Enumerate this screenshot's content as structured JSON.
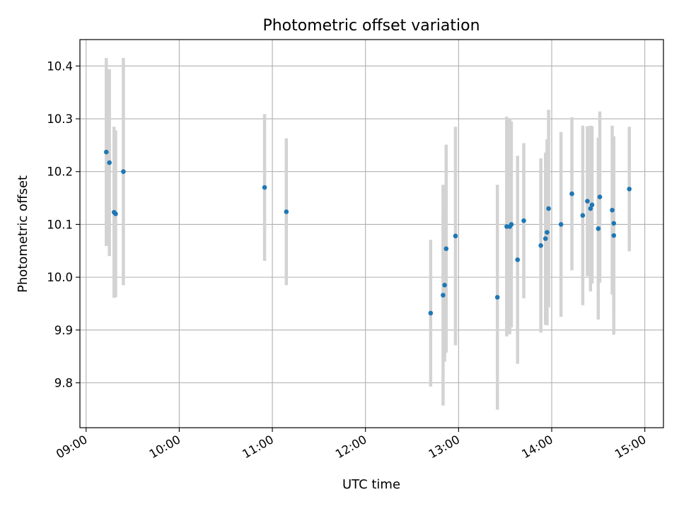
{
  "chart_data": {
    "type": "scatter",
    "title": "Photometric offset variation",
    "xlabel": "UTC time",
    "ylabel": "Photometric offset",
    "x_ticks": [
      "09:00",
      "10:00",
      "11:00",
      "12:00",
      "13:00",
      "14:00",
      "15:00"
    ],
    "y_ticks": [
      "9.8",
      "9.9",
      "10.0",
      "10.1",
      "10.2",
      "10.3",
      "10.4"
    ],
    "xlim": [
      "08:56",
      "15:12"
    ],
    "ylim": [
      9.715,
      10.45
    ],
    "grid": true,
    "errorbars": true,
    "colors": {
      "points": "#1f77b4",
      "errorbars": "#d3d3d3",
      "grid": "#b0b0b0"
    },
    "points": [
      {
        "x": "09:13",
        "y": 10.237,
        "err": 0.178
      },
      {
        "x": "09:15",
        "y": 10.217,
        "err": 0.177
      },
      {
        "x": "09:18",
        "y": 10.123,
        "err": 0.162
      },
      {
        "x": "09:19",
        "y": 10.12,
        "err": 0.158
      },
      {
        "x": "09:24",
        "y": 10.2,
        "err": 0.215
      },
      {
        "x": "10:55",
        "y": 10.17,
        "err": 0.139
      },
      {
        "x": "11:09",
        "y": 10.124,
        "err": 0.139
      },
      {
        "x": "12:42",
        "y": 9.932,
        "err": 0.139
      },
      {
        "x": "12:50",
        "y": 9.966,
        "err": 0.209
      },
      {
        "x": "12:51",
        "y": 9.985,
        "err": 0.145
      },
      {
        "x": "12:52",
        "y": 10.054,
        "err": 0.197
      },
      {
        "x": "12:58",
        "y": 10.078,
        "err": 0.207
      },
      {
        "x": "13:25",
        "y": 9.962,
        "err": 0.213
      },
      {
        "x": "13:31",
        "y": 10.096,
        "err": 0.208
      },
      {
        "x": "13:33",
        "y": 10.096,
        "err": 0.204
      },
      {
        "x": "13:34",
        "y": 10.1,
        "err": 0.195
      },
      {
        "x": "13:38",
        "y": 10.033,
        "err": 0.197
      },
      {
        "x": "13:42",
        "y": 10.107,
        "err": 0.147
      },
      {
        "x": "13:53",
        "y": 10.06,
        "err": 0.165
      },
      {
        "x": "13:56",
        "y": 10.073,
        "err": 0.163
      },
      {
        "x": "13:57",
        "y": 10.085,
        "err": 0.176
      },
      {
        "x": "13:58",
        "y": 10.13,
        "err": 0.187
      },
      {
        "x": "14:06",
        "y": 10.1,
        "err": 0.175
      },
      {
        "x": "14:13",
        "y": 10.158,
        "err": 0.145
      },
      {
        "x": "14:20",
        "y": 10.117,
        "err": 0.17
      },
      {
        "x": "14:23",
        "y": 10.144,
        "err": 0.142
      },
      {
        "x": "14:25",
        "y": 10.13,
        "err": 0.157
      },
      {
        "x": "14:26",
        "y": 10.137,
        "err": 0.149
      },
      {
        "x": "14:30",
        "y": 10.092,
        "err": 0.172
      },
      {
        "x": "14:31",
        "y": 10.152,
        "err": 0.162
      },
      {
        "x": "14:39",
        "y": 10.127,
        "err": 0.16
      },
      {
        "x": "14:40",
        "y": 10.102,
        "err": 0.163
      },
      {
        "x": "14:40",
        "y": 10.079,
        "err": 0.188
      },
      {
        "x": "14:50",
        "y": 10.167,
        "err": 0.118
      }
    ]
  }
}
